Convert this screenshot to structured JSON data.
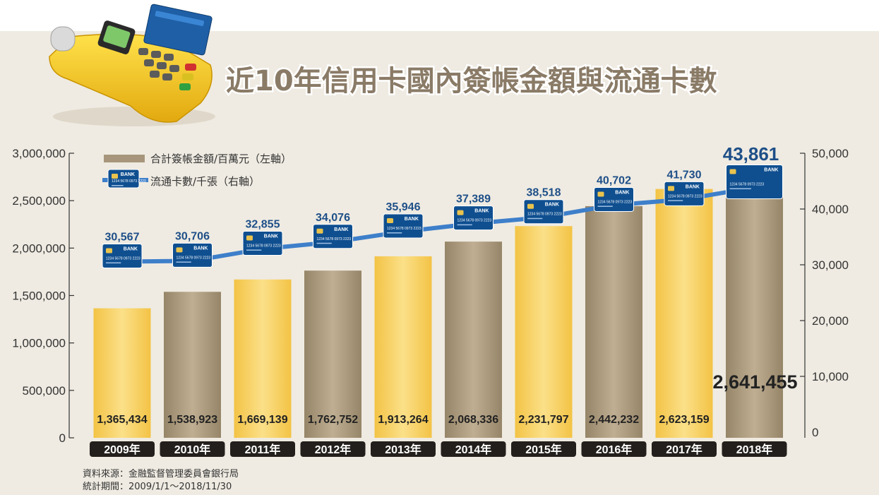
{
  "title": "近10年信用卡國內簽帳金額與流通卡數",
  "legend": {
    "bar_label": "合計簽帳金額/百萬元（左軸）",
    "line_label": "流通卡數/千張（右軸）"
  },
  "card": {
    "bank": "BANK",
    "number": "1234 5678 0973 2223"
  },
  "source": {
    "line1": "資料來源：金融監督管理委員會銀行局",
    "line2": "統計期間：2009/1/1～2018/11/30"
  },
  "colors": {
    "bar_gold": "#f6cd56",
    "bar_taupe": "#a7967b",
    "line": "#3e7fca",
    "card": "#0f4f90",
    "title": "#8a7b67",
    "background": "#efebe2"
  },
  "chart_data": {
    "type": "bar+line",
    "categories": [
      "2009年",
      "2010年",
      "2011年",
      "2012年",
      "2013年",
      "2014年",
      "2015年",
      "2016年",
      "2017年",
      "2018年"
    ],
    "bar_labels": [
      "1,365,434",
      "1,538,923",
      "1,669,139",
      "1,762,752",
      "1,913,264",
      "2,068,336",
      "2,231,797",
      "2,442,232",
      "2,623,159",
      "2,641,455"
    ],
    "line_labels": [
      "30,567",
      "30,706",
      "32,855",
      "34,076",
      "35,946",
      "37,389",
      "38,518",
      "40,702",
      "41,730",
      "43,861"
    ],
    "series": [
      {
        "name": "合計簽帳金額/百萬元（左軸）",
        "type": "bar",
        "axis": "left",
        "values": [
          1365434,
          1538923,
          1669139,
          1762752,
          1913264,
          2068336,
          2231797,
          2442232,
          2623159,
          2641455
        ],
        "colors": [
          "#f6cd56",
          "#a7967b",
          "#f6cd56",
          "#a7967b",
          "#f6cd56",
          "#a7967b",
          "#f6cd56",
          "#a7967b",
          "#f6cd56",
          "#a7967b"
        ]
      },
      {
        "name": "流通卡數/千張（右軸）",
        "type": "line",
        "axis": "right",
        "values": [
          30567,
          30706,
          32855,
          34076,
          35946,
          37389,
          38518,
          40702,
          41730,
          43861
        ]
      }
    ],
    "left_axis": {
      "min": 0,
      "max": 3000000,
      "ticks": [
        0,
        500000,
        1000000,
        1500000,
        2000000,
        2500000,
        3000000
      ],
      "tick_labels": [
        "0",
        "500,000",
        "1,000,000",
        "1,500,000",
        "2,000,000",
        "2,500,000",
        "3,000,000"
      ]
    },
    "right_axis": {
      "min": 0,
      "max": 50000,
      "ticks": [
        0,
        10000,
        20000,
        30000,
        40000,
        50000
      ],
      "tick_labels": [
        "0",
        "10,000",
        "20,000",
        "30,000",
        "40,000",
        "50,000"
      ]
    },
    "grid": false,
    "legend_position": "top-left"
  }
}
